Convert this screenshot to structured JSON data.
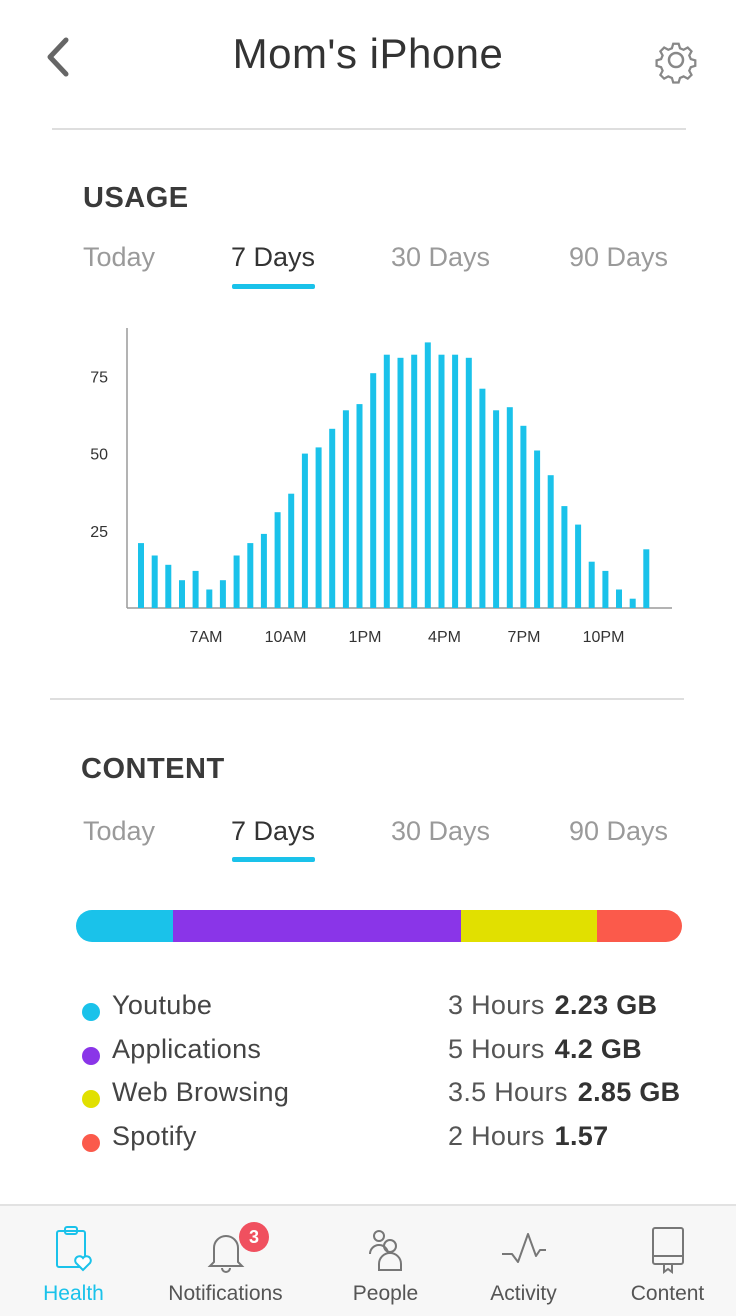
{
  "header": {
    "title": "Mom's iPhone"
  },
  "usage": {
    "title": "USAGE",
    "tabs": [
      "Today",
      "7 Days",
      "30 Days",
      "90 Days"
    ],
    "active_tab": "7 Days"
  },
  "chart_data": {
    "type": "bar",
    "values": [
      21,
      17,
      14,
      9,
      12,
      6,
      9,
      17,
      21,
      24,
      31,
      37,
      50,
      52,
      58,
      64,
      66,
      76,
      82,
      81,
      82,
      86,
      82,
      82,
      81,
      71,
      64,
      65,
      59,
      51,
      43,
      33,
      27,
      15,
      12,
      6,
      3,
      19
    ],
    "yticks": [
      "25",
      "50",
      "75"
    ],
    "xticks": [
      "7AM",
      "10AM",
      "1PM",
      "4PM",
      "7PM",
      "10PM"
    ],
    "ylim": [
      0,
      90
    ],
    "color": "#1ac2ea"
  },
  "content": {
    "title": "CONTENT",
    "tabs": [
      "Today",
      "7 Days",
      "30 Days",
      "90 Days"
    ],
    "active_tab": "7 Days",
    "items": [
      {
        "label": "Youtube",
        "hours": "3 Hours",
        "size": "2.23 GB",
        "color": "#1ac2ea",
        "share": 0.16
      },
      {
        "label": "Applications",
        "hours": "5 Hours",
        "size": "4.2 GB",
        "color": "#8a35e8",
        "share": 0.475
      },
      {
        "label": "Web Browsing",
        "hours": "3.5 Hours",
        "size": "2.85 GB",
        "color": "#e1e000",
        "share": 0.225
      },
      {
        "label": "Spotify",
        "hours": "2 Hours",
        "size": "1.57",
        "color": "#fb5a4b",
        "share": 0.14
      }
    ]
  },
  "nav": {
    "items": [
      {
        "label": "Health",
        "icon": "clipboard-heart-icon",
        "active": true
      },
      {
        "label": "Notifications",
        "icon": "bell-icon",
        "badge": "3"
      },
      {
        "label": "People",
        "icon": "people-icon"
      },
      {
        "label": "Activity",
        "icon": "activity-icon"
      },
      {
        "label": "Content",
        "icon": "book-icon"
      }
    ]
  },
  "colors": {
    "accent": "#1ac2ea",
    "badge": "#f0505f"
  }
}
